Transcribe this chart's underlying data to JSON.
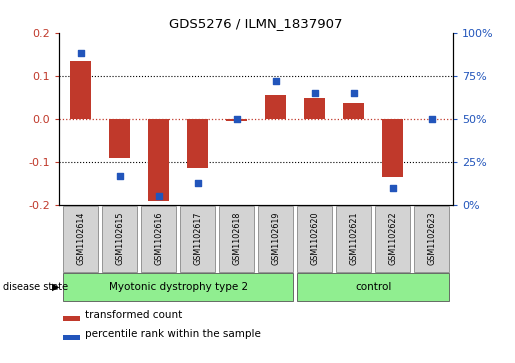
{
  "title": "GDS5276 / ILMN_1837907",
  "categories": [
    "GSM1102614",
    "GSM1102615",
    "GSM1102616",
    "GSM1102617",
    "GSM1102618",
    "GSM1102619",
    "GSM1102620",
    "GSM1102621",
    "GSM1102622",
    "GSM1102623"
  ],
  "bar_values": [
    0.135,
    -0.09,
    -0.19,
    -0.115,
    -0.005,
    0.055,
    0.048,
    0.038,
    -0.135,
    0.0
  ],
  "dot_values": [
    88,
    17,
    5,
    13,
    50,
    72,
    65,
    65,
    10,
    50
  ],
  "bar_color": "#c0392b",
  "dot_color": "#2255bb",
  "ylim": [
    -0.2,
    0.2
  ],
  "y2lim": [
    0,
    100
  ],
  "yticks": [
    -0.2,
    -0.1,
    0.0,
    0.1,
    0.2
  ],
  "y2ticks": [
    0,
    25,
    50,
    75,
    100
  ],
  "ylabel_color_left": "#c0392b",
  "ylabel_color_right": "#2255bb",
  "group1_label": "Myotonic dystrophy type 2",
  "group2_label": "control",
  "group1_indices": [
    0,
    1,
    2,
    3,
    4,
    5
  ],
  "group2_indices": [
    6,
    7,
    8,
    9
  ],
  "group1_color": "#90ee90",
  "group2_color": "#90ee90",
  "disease_state_label": "disease state",
  "legend1_label": "transformed count",
  "legend2_label": "percentile rank within the sample",
  "bg_color": "#ffffff",
  "grid_color": "#000000",
  "zero_line_color": "#c0392b",
  "label_box_color": "#d3d3d3",
  "border_color": "#888888"
}
